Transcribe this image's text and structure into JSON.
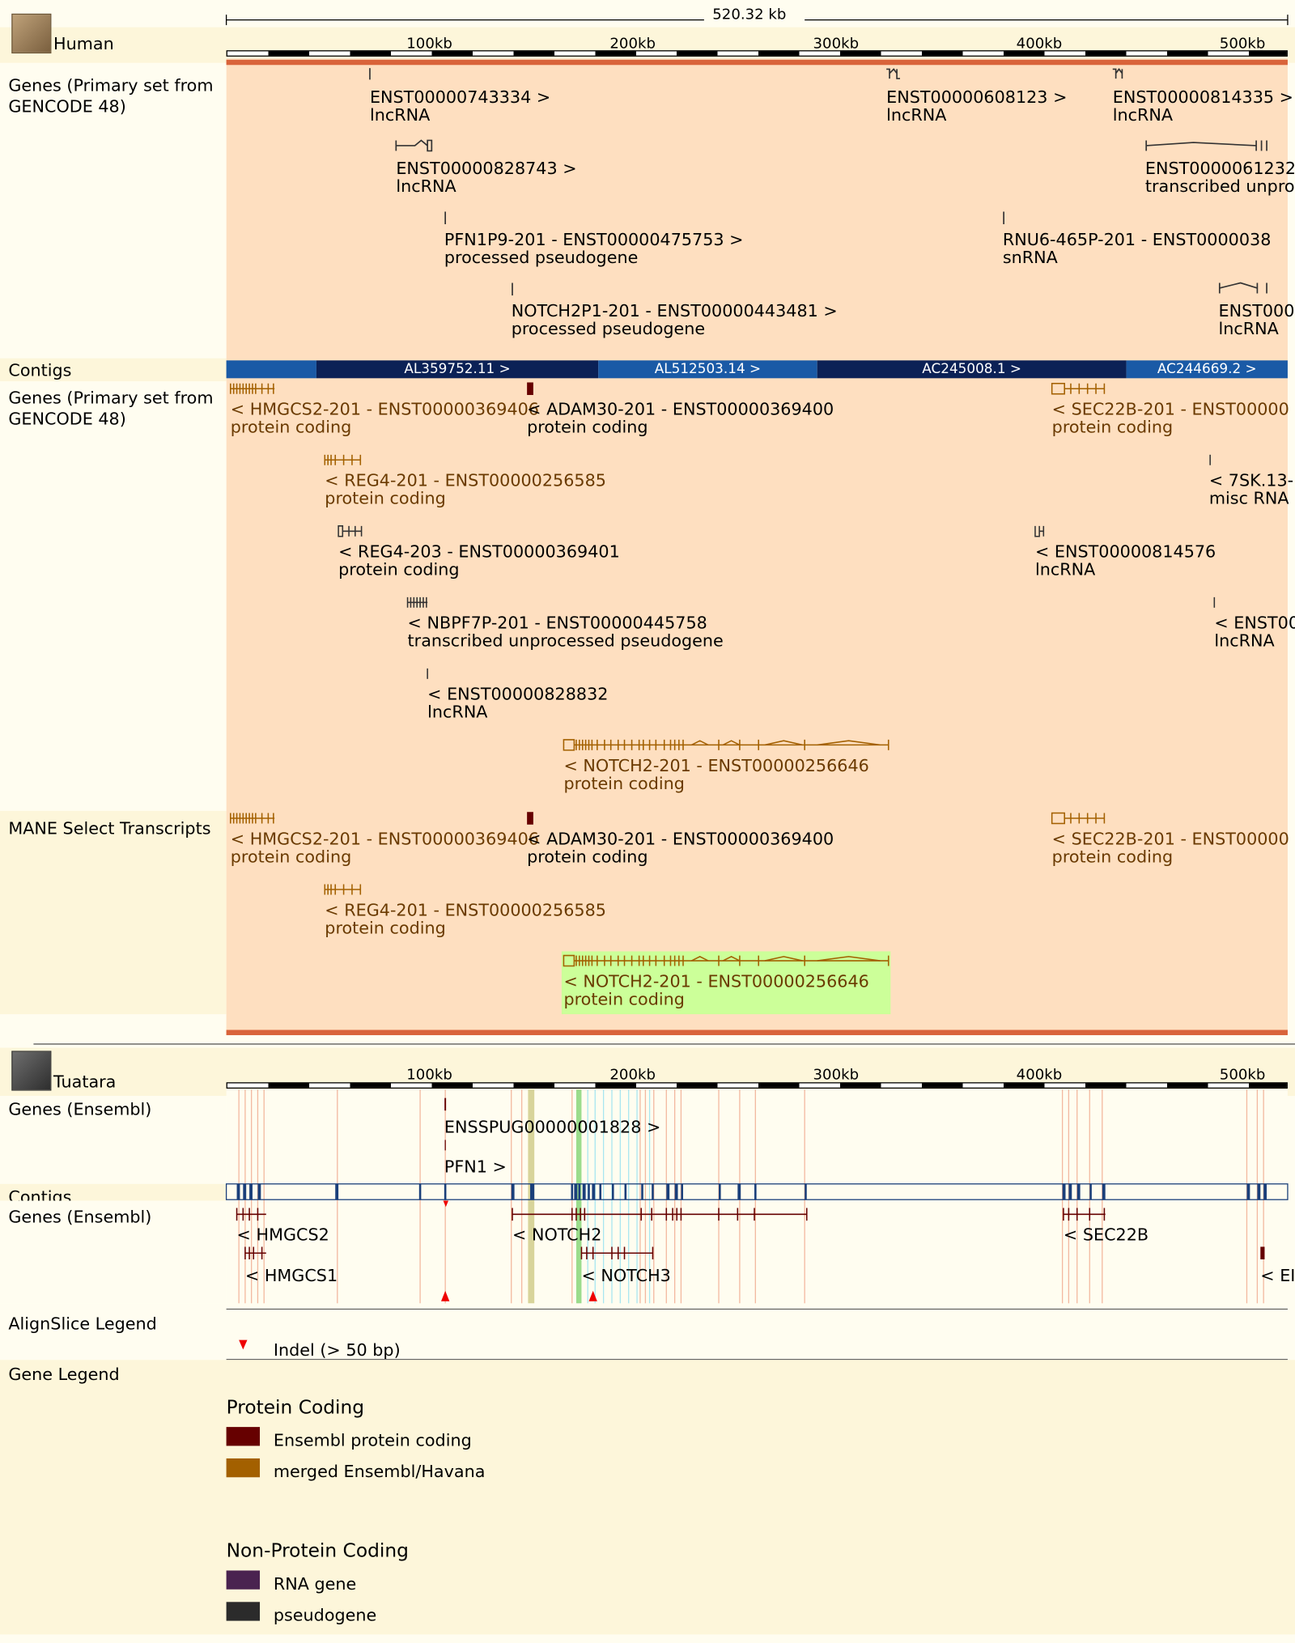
{
  "ruler": {
    "span": "520.32 kb",
    "ticks": [
      "100kb",
      "200kb",
      "300kb",
      "400kb",
      "500kb"
    ]
  },
  "human": {
    "species": "Human",
    "track1_label": "Genes (Primary set from GENCODE 48)",
    "track1_genes": [
      {
        "name": "ENST00000743334 >",
        "type": "lncRNA"
      },
      {
        "name": "ENST00000608123 >",
        "type": "lncRNA"
      },
      {
        "name": "ENST00000814335 >",
        "type": "lncRNA"
      },
      {
        "name": "ENST00000828743 >",
        "type": "lncRNA"
      },
      {
        "name": "ENST0000061232",
        "type": "transcribed unpro"
      },
      {
        "name": "PFN1P9-201 - ENST00000475753 >",
        "type": "processed pseudogene"
      },
      {
        "name": "RNU6-465P-201 - ENST0000038",
        "type": "snRNA"
      },
      {
        "name": "NOTCH2P1-201 - ENST00000443481 >",
        "type": "processed pseudogene"
      },
      {
        "name": "ENST000",
        "type": "lncRNA"
      }
    ],
    "contigs_label": "Contigs",
    "contigs": [
      "AL359752.11 >",
      "AL512503.14 >",
      "AC245008.1 >",
      "AC244669.2 >"
    ],
    "track2_label": "Genes (Primary set from GENCODE 48)",
    "track2_genes": [
      {
        "name": "< HMGCS2-201 - ENST00000369406",
        "type": "protein coding"
      },
      {
        "name": "< ADAM30-201 - ENST00000369400",
        "type": "protein coding"
      },
      {
        "name": "< SEC22B-201 - ENST00000",
        "type": "protein coding"
      },
      {
        "name": "< REG4-201 - ENST00000256585",
        "type": "protein coding"
      },
      {
        "name": "< 7SK.13-",
        "type": "misc RNA"
      },
      {
        "name": "< REG4-203 - ENST00000369401",
        "type": "protein coding"
      },
      {
        "name": "< ENST00000814576",
        "type": "lncRNA"
      },
      {
        "name": "< NBPF7P-201 - ENST00000445758",
        "type": "transcribed unprocessed pseudogene"
      },
      {
        "name": "< ENST00",
        "type": "lncRNA"
      },
      {
        "name": "< ENST00000828832",
        "type": "lncRNA"
      },
      {
        "name": "< NOTCH2-201 - ENST00000256646",
        "type": "protein coding"
      }
    ],
    "mane_label": "MANE Select Transcripts",
    "mane_genes": [
      {
        "name": "< HMGCS2-201 - ENST00000369406",
        "type": "protein coding"
      },
      {
        "name": "< ADAM30-201 - ENST00000369400",
        "type": "protein coding"
      },
      {
        "name": "< SEC22B-201 - ENST00000",
        "type": "protein coding"
      },
      {
        "name": "< REG4-201 - ENST00000256585",
        "type": "protein coding"
      },
      {
        "name": "< NOTCH2-201 - ENST00000256646",
        "type": "protein coding"
      }
    ]
  },
  "tuatara": {
    "species": "Tuatara",
    "track1_label": "Genes (Ensembl)",
    "track1_genes": [
      "ENSSPUG00000001828 >",
      "PFN1 >"
    ],
    "contigs_label": "Contigs",
    "track2_label": "Genes (Ensembl)",
    "track2_genes": [
      "< HMGCS2",
      "< NOTCH2",
      "< SEC22B",
      "< HMGCS1",
      "< NOTCH3",
      "< EI"
    ]
  },
  "alignslice_legend": {
    "label": "AlignSlice Legend",
    "indel": "Indel (> 50 bp)"
  },
  "gene_legend": {
    "label": "Gene Legend",
    "protein_title": "Protein Coding",
    "protein_items": [
      "Ensembl protein coding",
      "merged Ensembl/Havana"
    ],
    "nonprotein_title": "Non-Protein Coding",
    "nonprotein_items": [
      "RNA gene",
      "pseudogene"
    ]
  },
  "colors": {
    "ensembl_protein_coding": "#660000",
    "merged_ensembl_havana": "#a36000",
    "rna_gene": "#4a2350",
    "pseudogene": "#2b2b2b",
    "human_bg": "#fedfc0",
    "contig_dark": "#0b2156",
    "contig_light": "#1a5aa6",
    "mane_highlight": "#ccff99",
    "divider": "#d9633a"
  }
}
